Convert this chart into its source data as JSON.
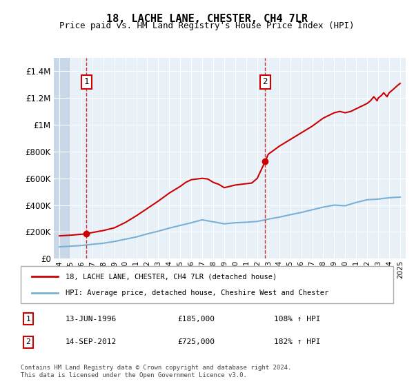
{
  "title": "18, LACHE LANE, CHESTER, CH4 7LR",
  "subtitle": "Price paid vs. HM Land Registry's House Price Index (HPI)",
  "hpi_label": "HPI: Average price, detached house, Cheshire West and Chester",
  "price_label": "18, LACHE LANE, CHESTER, CH4 7LR (detached house)",
  "footer1": "Contains HM Land Registry data © Crown copyright and database right 2024.",
  "footer2": "This data is licensed under the Open Government Licence v3.0.",
  "annotation1": {
    "label": "1",
    "date_x": 1996.45,
    "price": 185000,
    "date_str": "13-JUN-1996",
    "price_str": "£185,000",
    "hpi_str": "108% ↑ HPI"
  },
  "annotation2": {
    "label": "2",
    "date_x": 2012.71,
    "price": 725000,
    "date_str": "14-SEP-2012",
    "price_str": "£725,000",
    "hpi_str": "182% ↑ HPI"
  },
  "xlim": [
    1993.5,
    2025.5
  ],
  "ylim": [
    0,
    1500000
  ],
  "yticks": [
    0,
    200000,
    400000,
    600000,
    800000,
    1000000,
    1200000,
    1400000
  ],
  "ytick_labels": [
    "£0",
    "£200K",
    "£400K",
    "£600K",
    "£800K",
    "£1M",
    "£1.2M",
    "£1.4M"
  ],
  "xticks": [
    1994,
    1995,
    1996,
    1997,
    1998,
    1999,
    2000,
    2001,
    2002,
    2003,
    2004,
    2005,
    2006,
    2007,
    2008,
    2009,
    2010,
    2011,
    2012,
    2013,
    2014,
    2015,
    2016,
    2017,
    2018,
    2019,
    2020,
    2021,
    2022,
    2023,
    2024,
    2025
  ],
  "bg_color": "#e8f0f8",
  "hatch_color": "#c8d8e8",
  "grid_color": "#ffffff",
  "price_color": "#cc0000",
  "hpi_color": "#7ab0d4",
  "hpi_data_x": [
    1994,
    1995,
    1996,
    1997,
    1998,
    1999,
    2000,
    2001,
    2002,
    2003,
    2004,
    2005,
    2006,
    2007,
    2008,
    2009,
    2010,
    2011,
    2012,
    2013,
    2014,
    2015,
    2016,
    2017,
    2018,
    2019,
    2020,
    2021,
    2022,
    2023,
    2024,
    2025
  ],
  "hpi_data_y": [
    88000,
    93000,
    98000,
    107000,
    115000,
    128000,
    145000,
    162000,
    185000,
    205000,
    228000,
    248000,
    268000,
    290000,
    275000,
    260000,
    268000,
    272000,
    278000,
    295000,
    310000,
    328000,
    345000,
    365000,
    385000,
    400000,
    395000,
    420000,
    440000,
    445000,
    455000,
    460000
  ],
  "price_data_x": [
    1994.0,
    1995.0,
    1996.45,
    1997.0,
    1998.0,
    1999.0,
    2000.0,
    2001.0,
    2002.0,
    2003.0,
    2004.0,
    2005.0,
    2005.5,
    2006.0,
    2007.0,
    2007.5,
    2008.0,
    2008.5,
    2009.0,
    2009.5,
    2010.0,
    2010.5,
    2011.0,
    2011.5,
    2012.0,
    2012.71,
    2013.0,
    2014.0,
    2015.0,
    2016.0,
    2017.0,
    2018.0,
    2019.0,
    2019.5,
    2020.0,
    2020.5,
    2021.0,
    2021.5,
    2022.0,
    2022.3,
    2022.6,
    2022.9,
    2023.0,
    2023.3,
    2023.5,
    2023.8,
    2024.0,
    2024.3,
    2024.7,
    2025.0
  ],
  "price_data_y": [
    170000,
    175000,
    185000,
    195000,
    210000,
    230000,
    270000,
    320000,
    375000,
    430000,
    490000,
    540000,
    570000,
    590000,
    600000,
    595000,
    570000,
    555000,
    530000,
    540000,
    550000,
    555000,
    560000,
    565000,
    600000,
    725000,
    780000,
    840000,
    890000,
    940000,
    990000,
    1050000,
    1090000,
    1100000,
    1090000,
    1100000,
    1120000,
    1140000,
    1160000,
    1180000,
    1210000,
    1180000,
    1200000,
    1220000,
    1240000,
    1210000,
    1240000,
    1260000,
    1290000,
    1310000
  ]
}
